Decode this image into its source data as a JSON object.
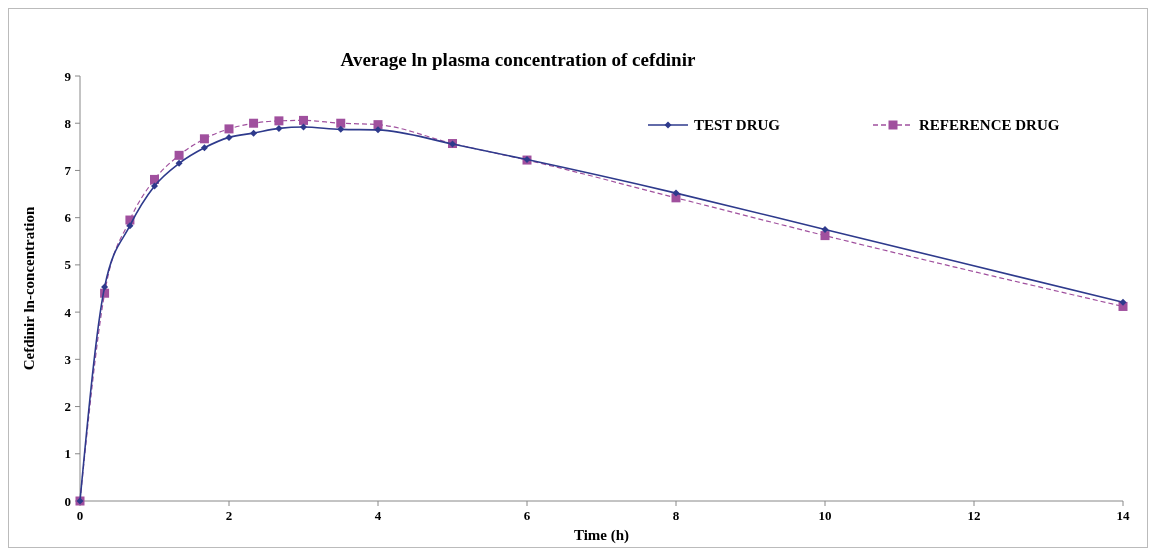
{
  "chart_data": {
    "type": "line",
    "title": "Average ln plasma  concentration of  cefdinir",
    "xlabel": "Time  (h)",
    "ylabel": "Cefdinir ln-concentration",
    "x": [
      0,
      0.33,
      0.67,
      1,
      1.33,
      1.67,
      2,
      2.33,
      2.67,
      3,
      3.5,
      4,
      5,
      6,
      8,
      10,
      14
    ],
    "series": [
      {
        "name": "TEST DRUG",
        "color": "#2e3a8c",
        "marker": "diamond",
        "line_style": "solid",
        "values": [
          0,
          4.53,
          5.83,
          6.67,
          7.15,
          7.48,
          7.7,
          7.79,
          7.89,
          7.92,
          7.87,
          7.86,
          7.56,
          7.23,
          6.52,
          5.75,
          4.21
        ]
      },
      {
        "name": "REFERENCE DRUG",
        "color": "#a0509e",
        "marker": "square",
        "line_style": "dashed",
        "values": [
          0,
          4.4,
          5.95,
          6.81,
          7.32,
          7.67,
          7.88,
          8.0,
          8.05,
          8.06,
          8.0,
          7.97,
          7.57,
          7.22,
          6.42,
          5.62,
          4.12
        ]
      }
    ],
    "xlim": [
      0,
      14
    ],
    "xticks": [
      0,
      2,
      4,
      6,
      8,
      10,
      12,
      14
    ],
    "ylim": [
      0,
      9
    ],
    "yticks": [
      0,
      1,
      2,
      3,
      4,
      5,
      6,
      7,
      8,
      9
    ],
    "grid": false,
    "legend": "top right"
  }
}
